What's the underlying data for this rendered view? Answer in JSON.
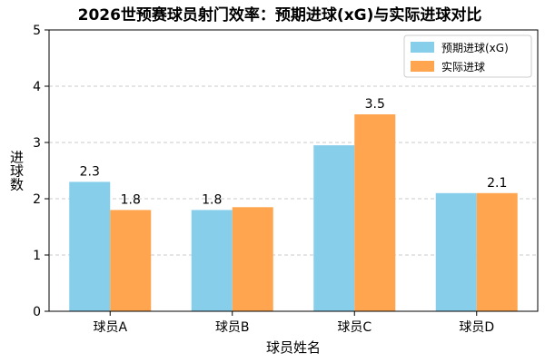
{
  "chart_data": {
    "type": "bar",
    "title": "2026世预赛球员射门效率：预期进球(xG)与实际进球对比",
    "xlabel": "球员姓名",
    "ylabel": "进球数",
    "categories": [
      "球员A",
      "球员B",
      "球员C",
      "球员D"
    ],
    "series": [
      {
        "name": "预期进球(xG)",
        "color": "#87CEEB",
        "values": [
          2.3,
          1.8,
          2.95,
          2.1
        ],
        "labels": [
          "2.3",
          "1.8",
          "",
          ""
        ]
      },
      {
        "name": "实际进球",
        "color": "#FFA54F",
        "values": [
          1.8,
          1.85,
          3.5,
          2.1
        ],
        "labels": [
          "1.8",
          "",
          "3.5",
          "2.1"
        ]
      }
    ],
    "ylim": [
      0,
      5
    ],
    "yticks": [
      "0",
      "1",
      "2",
      "3",
      "4",
      "5"
    ],
    "grid": "y",
    "legend": "top-right"
  }
}
